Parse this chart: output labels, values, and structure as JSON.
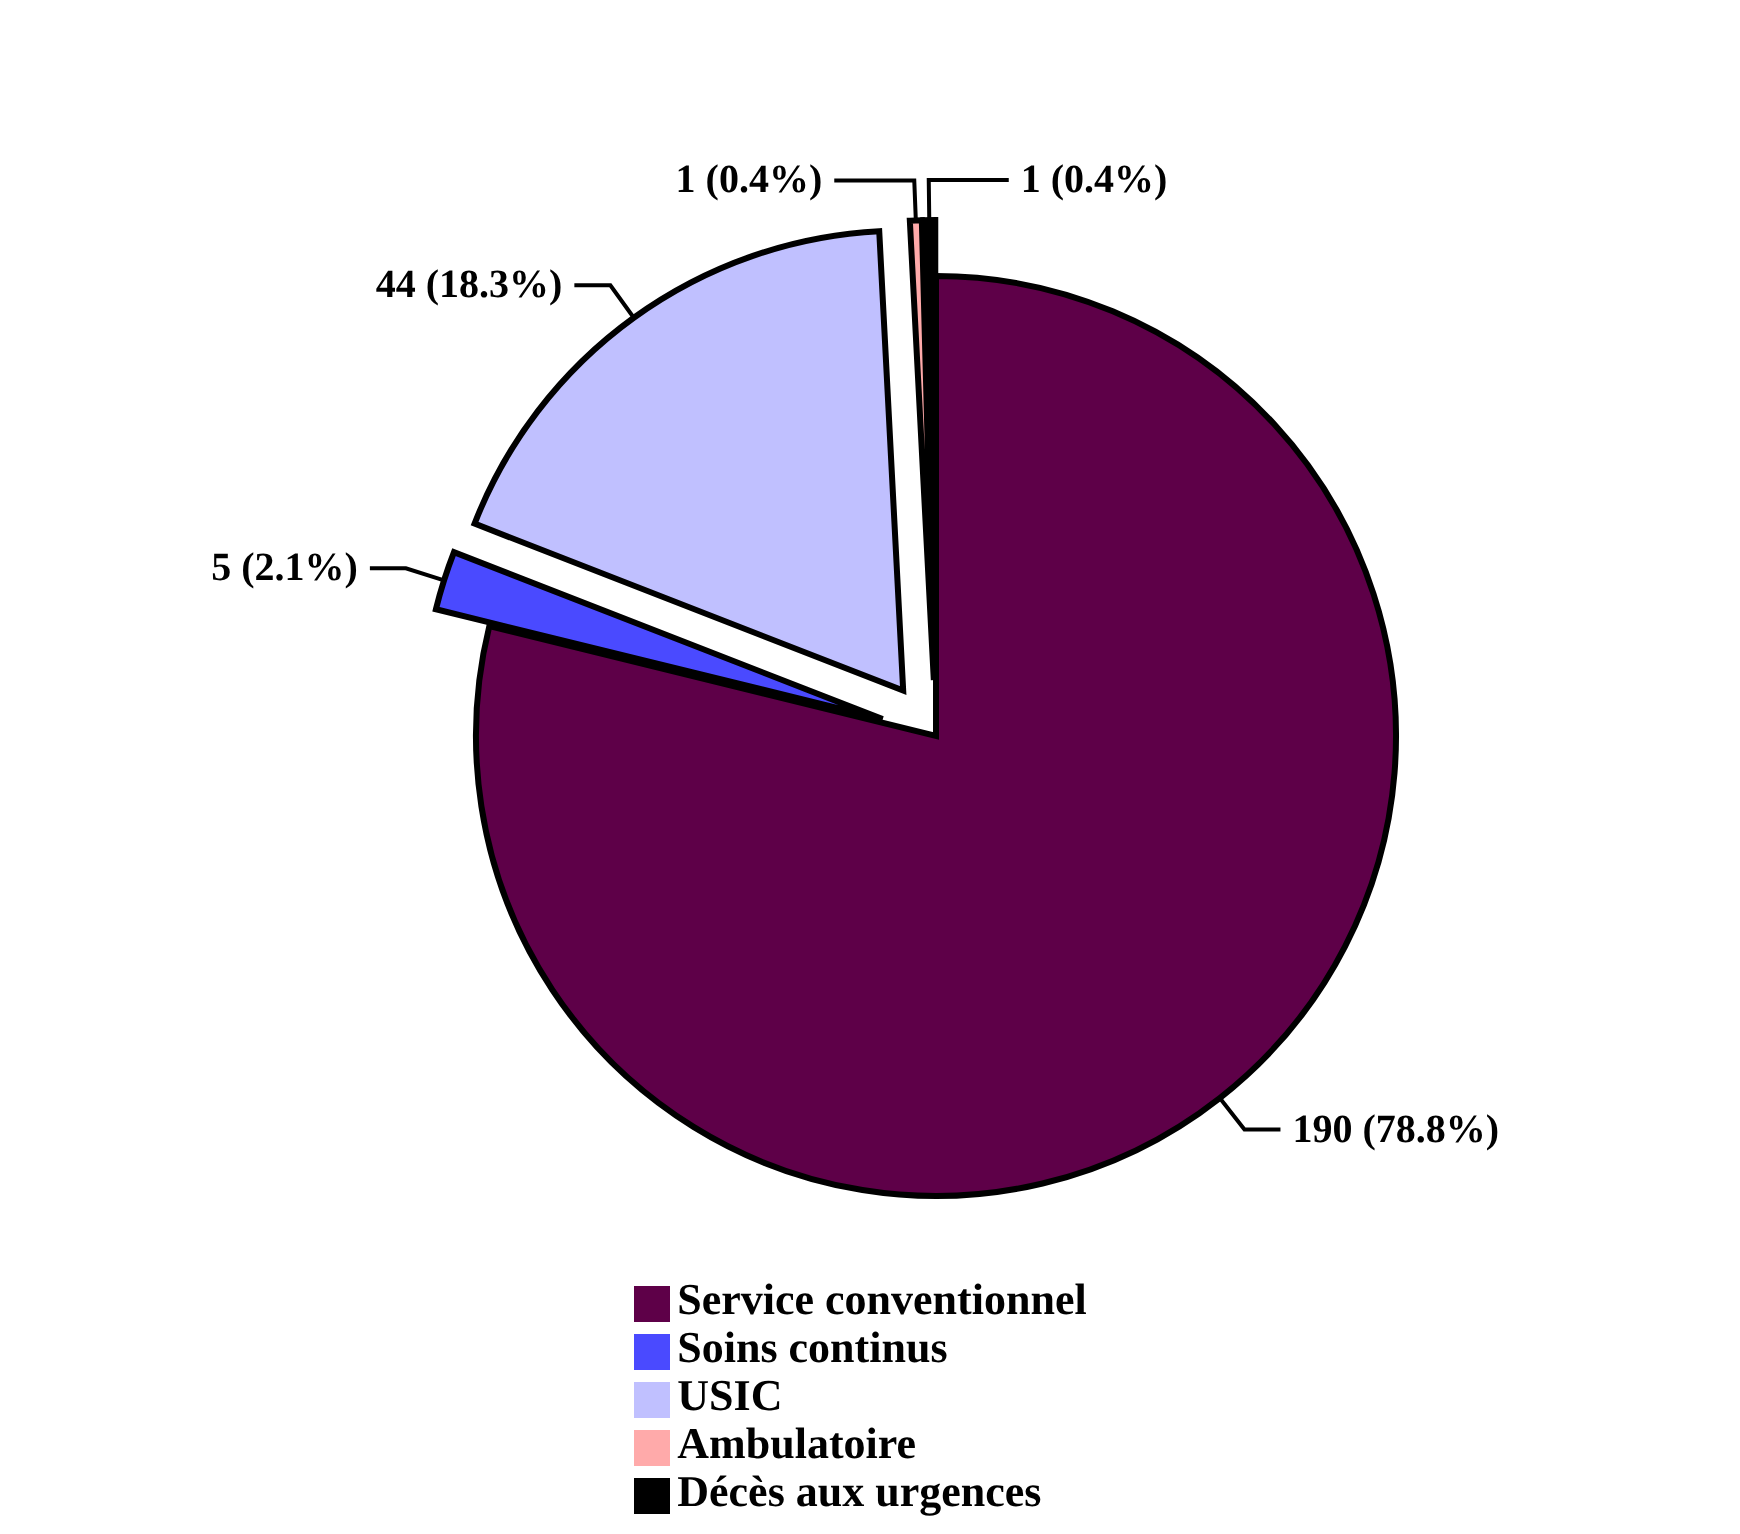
{
  "chart_data": {
    "type": "pie",
    "categories": [
      "Service conventionnel",
      "Soins continus",
      "USIC",
      "Ambulatoire",
      "Décès aux urgences"
    ],
    "values": [
      190,
      5,
      44,
      1,
      1
    ],
    "colors": [
      "#5e0048",
      "#4a4aff",
      "#c0c0ff",
      "#ffaaaa",
      "#000000"
    ],
    "value_labels": [
      "190 (78.8%)",
      "5 (2.1%)",
      "44 (18.3%)",
      "1 (0.4%)",
      "1 (0.4%)"
    ],
    "legend": "bottom"
  }
}
